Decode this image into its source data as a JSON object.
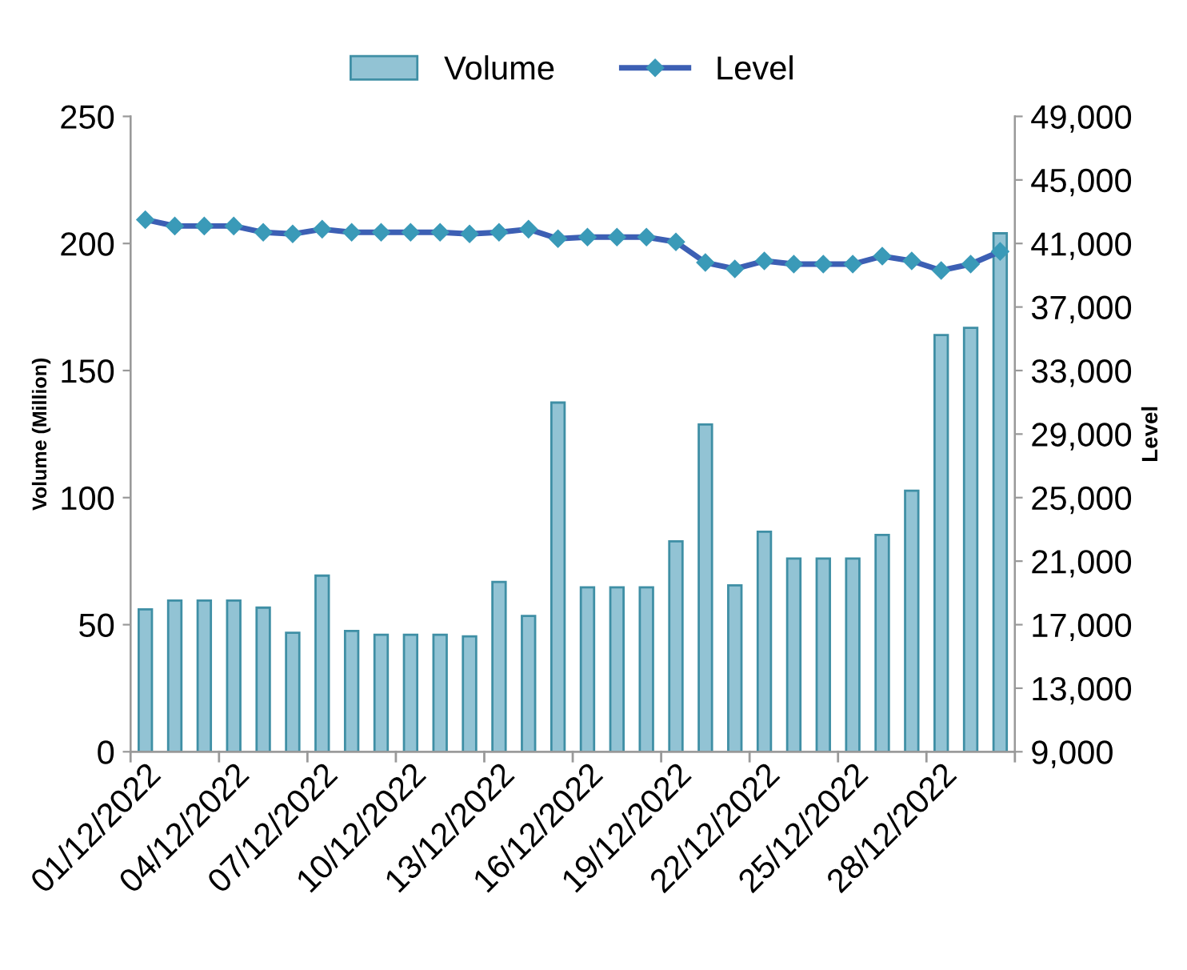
{
  "chart_data": {
    "type": "bar",
    "categories": [
      "01/12/2022",
      null,
      null,
      "04/12/2022",
      null,
      null,
      "07/12/2022",
      null,
      null,
      "10/12/2022",
      null,
      null,
      "13/12/2022",
      null,
      null,
      "16/12/2022",
      null,
      null,
      "19/12/2022",
      null,
      null,
      "22/12/2022",
      null,
      null,
      "25/12/2022",
      null,
      null,
      "28/12/2022",
      null,
      null
    ],
    "series": [
      {
        "name": "Volume",
        "color": "#92c3d4",
        "values": [
          56,
          59.5,
          59.5,
          59.5,
          56.7,
          46.8,
          69.3,
          47.5,
          46,
          46,
          46,
          45.4,
          66.8,
          53.4,
          137.4,
          64.7,
          64.7,
          64.7,
          82.8,
          128.8,
          65.5,
          86.6,
          76,
          76,
          76,
          85.3,
          102.7,
          164,
          166.8,
          204
        ]
      },
      {
        "name": "Level",
        "type": "line",
        "axis": "y2",
        "color": "#3c5fb4",
        "marker": "diamond",
        "values": [
          42500,
          42100,
          42100,
          42100,
          41700,
          41600,
          41900,
          41700,
          41700,
          41700,
          41700,
          41600,
          41700,
          41900,
          41300,
          41400,
          41400,
          41400,
          41100,
          39800,
          39400,
          39900,
          39700,
          39700,
          39700,
          40200,
          39900,
          39300,
          39700,
          40500
        ]
      }
    ],
    "ylabel": "Volume (Million)",
    "y2label": "Level",
    "ylim": [
      0,
      250
    ],
    "yticks": [
      0,
      50,
      100,
      150,
      200,
      250
    ],
    "y2lim": [
      9000,
      49000
    ],
    "y2ticks": [
      {
        "value": 9000,
        "label": "9,000"
      },
      {
        "value": 13000,
        "label": "13,000"
      },
      {
        "value": 17000,
        "label": "17,000"
      },
      {
        "value": 21000,
        "label": "21,000"
      },
      {
        "value": 25000,
        "label": "25,000"
      },
      {
        "value": 29000,
        "label": "29,000"
      },
      {
        "value": 33000,
        "label": "33,000"
      },
      {
        "value": 37000,
        "label": "37,000"
      },
      {
        "value": 41000,
        "label": "41,000"
      },
      {
        "value": 45000,
        "label": "45,000"
      },
      {
        "value": 49000,
        "label": "49,000"
      }
    ],
    "legend": "top",
    "grid": false
  }
}
